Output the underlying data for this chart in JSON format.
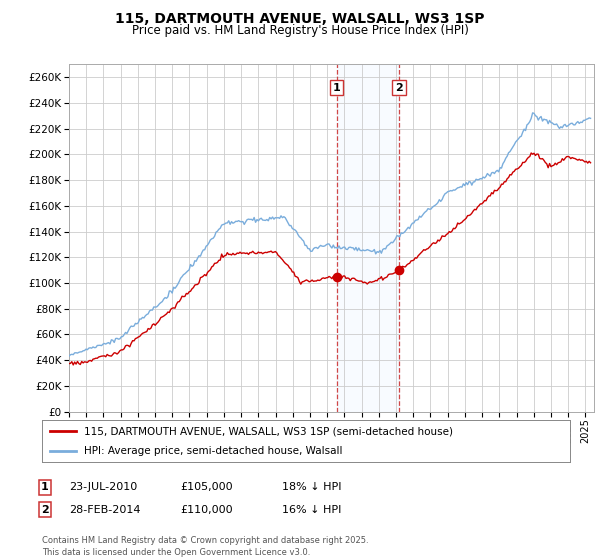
{
  "title": "115, DARTMOUTH AVENUE, WALSALL, WS3 1SP",
  "subtitle": "Price paid vs. HM Land Registry's House Price Index (HPI)",
  "ylim": [
    0,
    270000
  ],
  "yticks": [
    0,
    20000,
    40000,
    60000,
    80000,
    100000,
    120000,
    140000,
    160000,
    180000,
    200000,
    220000,
    240000,
    260000
  ],
  "xlim_start": 1995.0,
  "xlim_end": 2025.5,
  "sale1_date": 2010.55,
  "sale1_price": 105000,
  "sale2_date": 2014.17,
  "sale2_price": 110000,
  "line_color_hpi": "#7aaddc",
  "line_color_price": "#cc0000",
  "marker_color": "#cc0000",
  "vline_color": "#cc3333",
  "shade_color": "#ddeeff",
  "legend_label_price": "115, DARTMOUTH AVENUE, WALSALL, WS3 1SP (semi-detached house)",
  "legend_label_hpi": "HPI: Average price, semi-detached house, Walsall",
  "footer": "Contains HM Land Registry data © Crown copyright and database right 2025.\nThis data is licensed under the Open Government Licence v3.0.",
  "table_rows": [
    {
      "num": "1",
      "date": "23-JUL-2010",
      "price": "£105,000",
      "hpi": "18% ↓ HPI"
    },
    {
      "num": "2",
      "date": "28-FEB-2014",
      "price": "£110,000",
      "hpi": "16% ↓ HPI"
    }
  ],
  "background_color": "#ffffff",
  "grid_color": "#cccccc"
}
